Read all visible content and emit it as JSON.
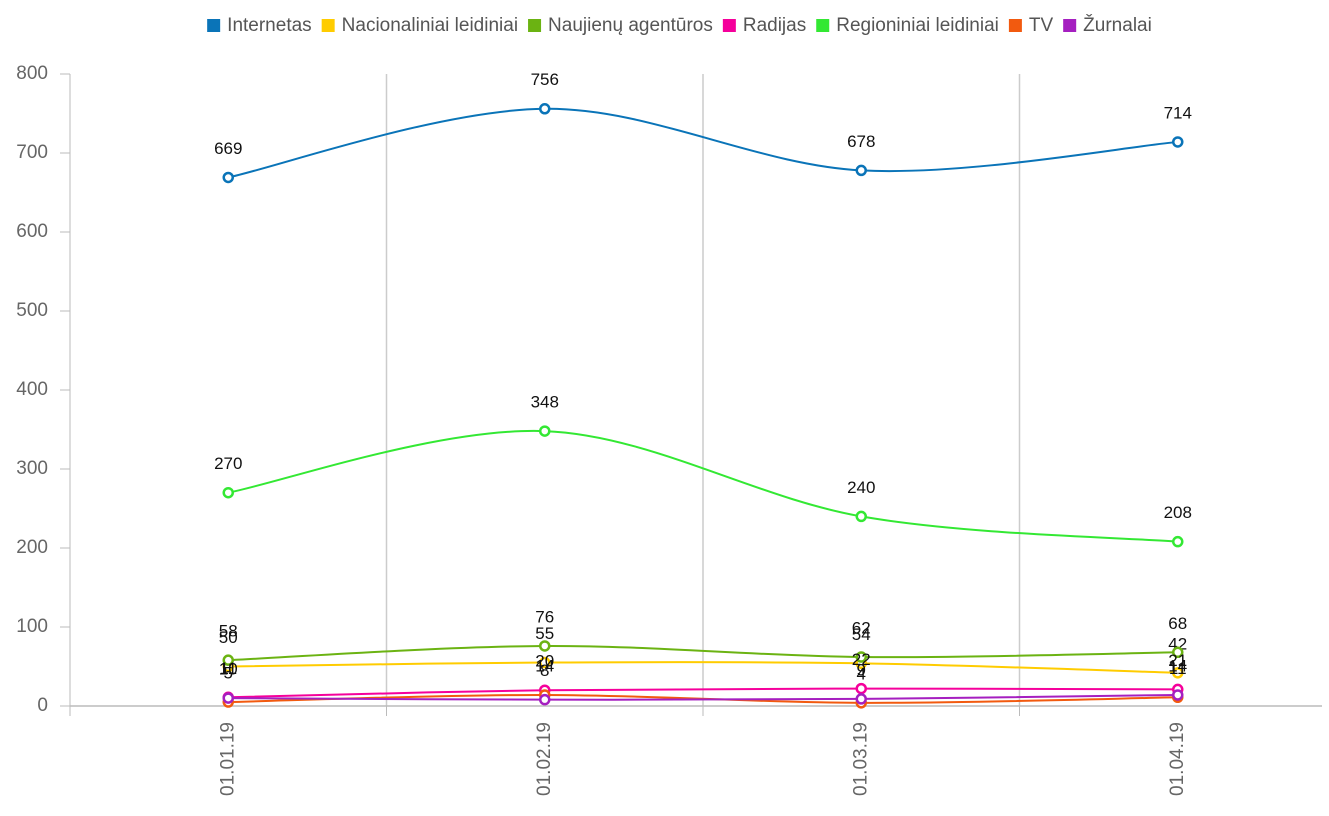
{
  "chart_data": {
    "type": "line",
    "categories": [
      "01.01.19",
      "01.02.19",
      "01.03.19",
      "01.04.19"
    ],
    "series": [
      {
        "name": "Internetas",
        "color": "#0a74b8",
        "values": [
          669,
          756,
          678,
          714
        ]
      },
      {
        "name": "Nacionaliniai leidiniai",
        "color": "#ffcc00",
        "values": [
          50,
          55,
          54,
          42
        ]
      },
      {
        "name": "Naujienų agentūros",
        "color": "#6bb312",
        "values": [
          58,
          76,
          62,
          68
        ]
      },
      {
        "name": "Radijas",
        "color": "#f5009b",
        "values": [
          11,
          20,
          22,
          21
        ]
      },
      {
        "name": "Regioniniai leidiniai",
        "color": "#33e833",
        "values": [
          270,
          348,
          240,
          208
        ]
      },
      {
        "name": "TV",
        "color": "#f25a0f",
        "values": [
          5,
          14,
          4,
          11
        ]
      },
      {
        "name": "Žurnalai",
        "color": "#a51fc0",
        "values": [
          10,
          8,
          9,
          14
        ]
      }
    ],
    "ylim": [
      0,
      800
    ],
    "yticks": [
      0,
      100,
      200,
      300,
      400,
      500,
      600,
      700,
      800
    ],
    "grid": true,
    "legend": "top"
  }
}
